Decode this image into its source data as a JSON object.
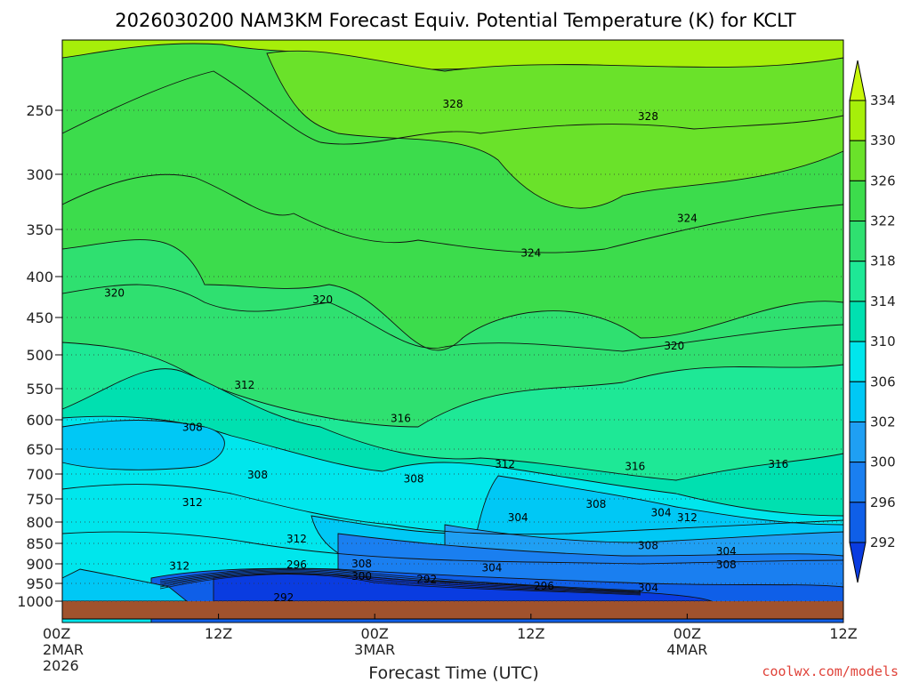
{
  "chart_data": {
    "type": "heatmap",
    "title": "2026030200 NAM3KM Forecast Equiv. Potential Temperature (K) for KCLT",
    "xlabel": "Forecast Time (UTC)",
    "ylabel": "",
    "x_ticks": [
      {
        "hour": 0,
        "lines": [
          "00Z",
          "2MAR",
          "2026"
        ]
      },
      {
        "hour": 12,
        "lines": [
          "12Z"
        ]
      },
      {
        "hour": 24,
        "lines": [
          "00Z",
          "3MAR"
        ]
      },
      {
        "hour": 36,
        "lines": [
          "12Z"
        ]
      },
      {
        "hour": 48,
        "lines": [
          "00Z",
          "4MAR"
        ]
      },
      {
        "hour": 60,
        "lines": [
          "12Z"
        ]
      }
    ],
    "xlim": [
      0,
      60
    ],
    "y_ticks": [
      250,
      300,
      350,
      400,
      450,
      500,
      550,
      600,
      650,
      700,
      750,
      800,
      850,
      900,
      950,
      1000
    ],
    "ylim_hPa": [
      200,
      1000
    ],
    "colorbar": {
      "levels": [
        292,
        296,
        300,
        302,
        306,
        310,
        314,
        318,
        322,
        326,
        330,
        334
      ],
      "colors": [
        "#0a3ce0",
        "#0f5fe8",
        "#1a7ff0",
        "#1f9ff3",
        "#00c8f5",
        "#00e6ec",
        "#00e0b0",
        "#1ee896",
        "#2fe070",
        "#3cdc4c",
        "#6ae22a",
        "#a6ef0a",
        "#c8f70a"
      ]
    },
    "contour_labels": [
      {
        "hour": 30,
        "p": 245,
        "v": "328"
      },
      {
        "hour": 45,
        "p": 255,
        "v": "328"
      },
      {
        "hour": 48,
        "p": 340,
        "v": "324"
      },
      {
        "hour": 36,
        "p": 375,
        "v": "324"
      },
      {
        "hour": 4,
        "p": 420,
        "v": "320"
      },
      {
        "hour": 20,
        "p": 428,
        "v": "320"
      },
      {
        "hour": 47,
        "p": 488,
        "v": "320"
      },
      {
        "hour": 14,
        "p": 545,
        "v": "312"
      },
      {
        "hour": 26,
        "p": 598,
        "v": "316"
      },
      {
        "hour": 44,
        "p": 685,
        "v": "316"
      },
      {
        "hour": 55,
        "p": 680,
        "v": "316"
      },
      {
        "hour": 10,
        "p": 613,
        "v": "308"
      },
      {
        "hour": 15,
        "p": 702,
        "v": "308"
      },
      {
        "hour": 27,
        "p": 710,
        "v": "308"
      },
      {
        "hour": 34,
        "p": 680,
        "v": "312"
      },
      {
        "hour": 10,
        "p": 758,
        "v": "312"
      },
      {
        "hour": 18,
        "p": 840,
        "v": "312"
      },
      {
        "hour": 9,
        "p": 906,
        "v": "312"
      },
      {
        "hour": 18,
        "p": 902,
        "v": "296"
      },
      {
        "hour": 23,
        "p": 900,
        "v": "308"
      },
      {
        "hour": 23,
        "p": 932,
        "v": "300"
      },
      {
        "hour": 28,
        "p": 940,
        "v": "292"
      },
      {
        "hour": 33,
        "p": 910,
        "v": "304"
      },
      {
        "hour": 35,
        "p": 790,
        "v": "304"
      },
      {
        "hour": 41,
        "p": 762,
        "v": "308"
      },
      {
        "hour": 46,
        "p": 780,
        "v": "304"
      },
      {
        "hour": 48,
        "p": 790,
        "v": "312"
      },
      {
        "hour": 45,
        "p": 855,
        "v": "308"
      },
      {
        "hour": 51,
        "p": 870,
        "v": "304"
      },
      {
        "hour": 51,
        "p": 902,
        "v": "308"
      },
      {
        "hour": 37,
        "p": 958,
        "v": "296"
      },
      {
        "hour": 45,
        "p": 962,
        "v": "304"
      },
      {
        "hour": 17,
        "p": 990,
        "v": "292"
      }
    ],
    "credit": "coolwx.com/models"
  }
}
